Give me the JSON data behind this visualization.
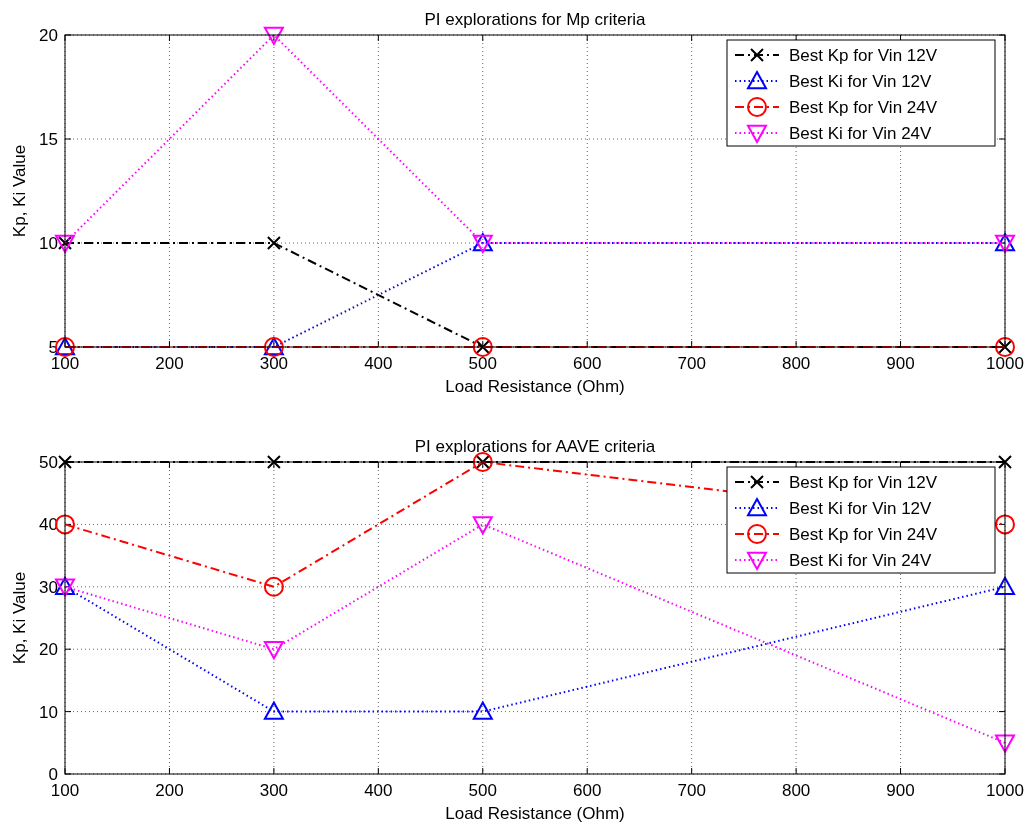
{
  "chart_data": [
    {
      "type": "line",
      "title": "PI explorations for Mp criteria",
      "xlabel": "Load Resistance (Ohm)",
      "ylabel": "Kp, Ki Value",
      "x": [
        100,
        300,
        500,
        1000
      ],
      "xlim": [
        100,
        1000
      ],
      "xticks": [
        100,
        200,
        300,
        400,
        500,
        600,
        700,
        800,
        900,
        1000
      ],
      "ylim": [
        5,
        20
      ],
      "yticks": [
        5,
        10,
        15,
        20
      ],
      "grid": true,
      "legend": "top right",
      "series": [
        {
          "name": "Best Kp for Vin 12V",
          "color": "#000000",
          "values": [
            10,
            10,
            5,
            5
          ],
          "marker": "cross",
          "line_style": "dashed"
        },
        {
          "name": "Best Ki for Vin 12V",
          "color": "#0000ff",
          "values": [
            5,
            5,
            10,
            10
          ],
          "marker": "triangle",
          "line_style": "dotted"
        },
        {
          "name": "Best Kp for Vin 24V",
          "color": "#ff0000",
          "values": [
            5,
            5,
            5,
            5
          ],
          "marker": "circle",
          "line_style": "dashed"
        },
        {
          "name": "Best Ki for Vin 24V",
          "color": "#ff00ff",
          "values": [
            10,
            20,
            10,
            10
          ],
          "marker": "triangle-down",
          "line_style": "dotted"
        }
      ]
    },
    {
      "type": "line",
      "title": "PI explorations for AAVE criteria",
      "xlabel": "Load Resistance (Ohm)",
      "ylabel": "Kp, Ki Value",
      "x": [
        100,
        300,
        500,
        1000
      ],
      "xlim": [
        100,
        1000
      ],
      "xticks": [
        100,
        200,
        300,
        400,
        500,
        600,
        700,
        800,
        900,
        1000
      ],
      "ylim": [
        0,
        50
      ],
      "yticks": [
        0,
        10,
        20,
        30,
        40,
        50
      ],
      "grid": true,
      "legend": "top right",
      "series": [
        {
          "name": "Best Kp for Vin 12V",
          "color": "#000000",
          "values": [
            50,
            50,
            50,
            50
          ],
          "marker": "cross",
          "line_style": "dashed"
        },
        {
          "name": "Best Ki for Vin 12V",
          "color": "#0000ff",
          "values": [
            30,
            10,
            10,
            30
          ],
          "marker": "triangle",
          "line_style": "dotted"
        },
        {
          "name": "Best Kp for Vin 24V",
          "color": "#ff0000",
          "values": [
            40,
            30,
            50,
            40
          ],
          "marker": "circle",
          "line_style": "dashed"
        },
        {
          "name": "Best Ki for Vin 24V",
          "color": "#ff00ff",
          "values": [
            30,
            20,
            40,
            5
          ],
          "marker": "triangle-down",
          "line_style": "dotted"
        }
      ]
    }
  ]
}
